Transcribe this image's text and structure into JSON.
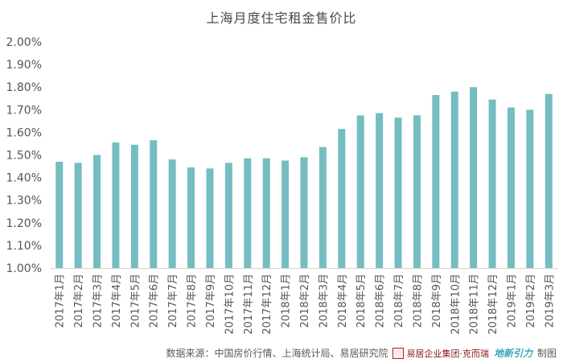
{
  "chart_data": {
    "type": "bar",
    "title": "上海月度住宅租金售价比",
    "xlabel": "",
    "ylabel": "",
    "ylim": [
      1.0,
      2.0
    ],
    "y_tick_labels": [
      "1.00%",
      "1.10%",
      "1.20%",
      "1.30%",
      "1.40%",
      "1.50%",
      "1.60%",
      "1.70%",
      "1.80%",
      "1.90%",
      "2.00%"
    ],
    "grid": false,
    "legend": "none",
    "bar_color": "#74bdc1",
    "categories": [
      "2017年1月",
      "2017年2月",
      "2017年3月",
      "2017年4月",
      "2017年5月",
      "2017年6月",
      "2017年7月",
      "2017年8月",
      "2017年9月",
      "2017年10月",
      "2017年11月",
      "2017年12月",
      "2018年1月",
      "2018年2月",
      "2018年3月",
      "2018年4月",
      "2018年5月",
      "2018年6月",
      "2018年7月",
      "2018年8月",
      "2018年9月",
      "2018年10月",
      "2018年11月",
      "2018年12月",
      "2019年1月",
      "2019年2月",
      "2019年3月"
    ],
    "values": [
      1.47,
      1.465,
      1.5,
      1.555,
      1.545,
      1.565,
      1.48,
      1.445,
      1.44,
      1.465,
      1.485,
      1.485,
      1.475,
      1.49,
      1.535,
      1.615,
      1.675,
      1.685,
      1.665,
      1.675,
      1.765,
      1.78,
      1.8,
      1.745,
      1.71,
      1.7,
      1.77
    ]
  },
  "footer": {
    "source": "数据来源：中国房价行情、上海统计局、易居研究院",
    "brand": "易居企业集团·克而瑞",
    "brand_mark": "地新引力",
    "credit": "制图"
  }
}
